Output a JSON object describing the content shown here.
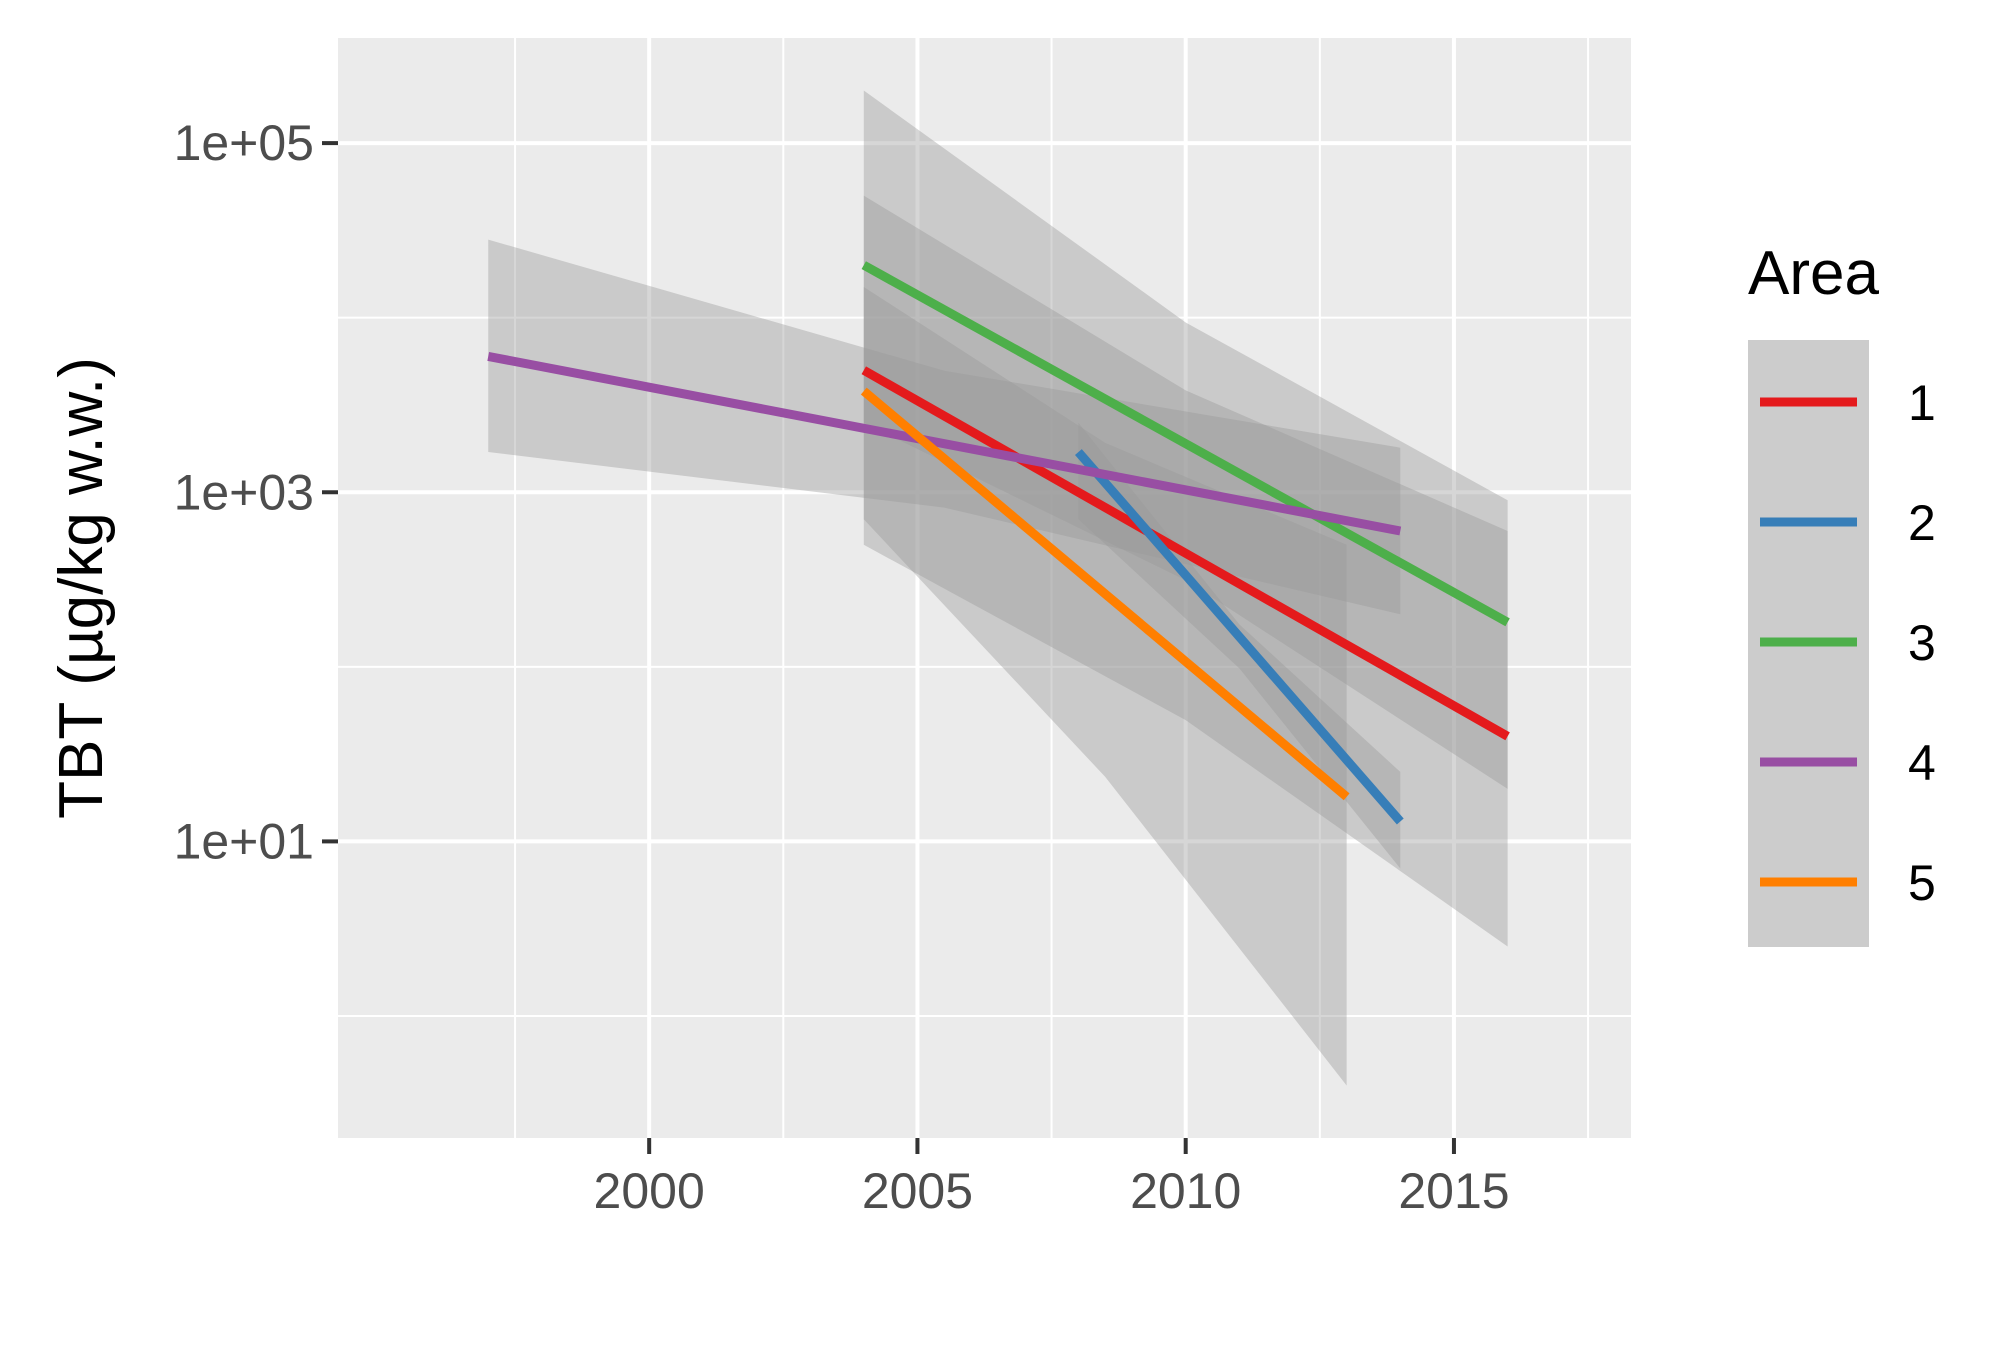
{
  "chart_data": {
    "type": "line",
    "ylabel": "TBT (µg/kg w.w.)",
    "xlabel": "",
    "y_scale": "log10",
    "xlim": [
      1994.2,
      2018.3
    ],
    "ylim": [
      0.2,
      400000
    ],
    "x_ticks": [
      2000,
      2005,
      2010,
      2015
    ],
    "x_tick_labels": [
      "2000",
      "2005",
      "2010",
      "2015"
    ],
    "y_ticks": [
      10,
      1000,
      100000
    ],
    "y_tick_labels": [
      "1e+01",
      "1e+03",
      "1e+05"
    ],
    "grid": true,
    "legend": {
      "title": "Area",
      "position": "right"
    },
    "series": [
      {
        "name": "1",
        "color": "#E41A1C",
        "x": [
          2004,
          2016
        ],
        "y": [
          5000,
          40
        ],
        "ci_lower": [
          500,
          2.5
        ],
        "ci_upper": [
          50000,
          600
        ]
      },
      {
        "name": "2",
        "color": "#377EB8",
        "x": [
          2008,
          2014
        ],
        "y": [
          1700,
          13
        ],
        "ci_lower": [
          700,
          7
        ],
        "ci_upper": [
          2500,
          25
        ]
      },
      {
        "name": "3",
        "color": "#4DAF4A",
        "x": [
          2004,
          2016
        ],
        "y": [
          20000,
          180
        ],
        "ci_lower": [
          2500,
          20
        ],
        "ci_upper": [
          200000,
          900
        ]
      },
      {
        "name": "4",
        "color": "#984EA3",
        "x": [
          1997,
          2014
        ],
        "y": [
          6000,
          600
        ],
        "ci_lower": [
          1700,
          200
        ],
        "ci_upper": [
          28000,
          1800
        ]
      },
      {
        "name": "5",
        "color": "#FF7F00",
        "x": [
          2004,
          2013
        ],
        "y": [
          3800,
          18
        ],
        "ci_lower": [
          700,
          0.4
        ],
        "ci_upper": [
          15000,
          500
        ]
      }
    ]
  }
}
